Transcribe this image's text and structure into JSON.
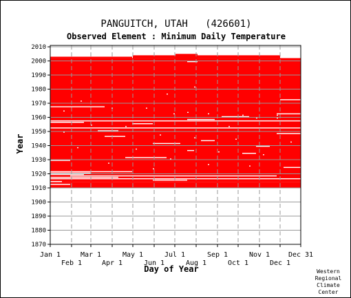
{
  "chart_data": {
    "type": "heatmap",
    "title": "PANGUITCH, UTAH   (426601)",
    "subtitle": "Observed Element : Minimum Daily Temperature",
    "xlabel": "Day of Year",
    "ylabel": "Year",
    "credit": [
      "Western",
      "Regional",
      "Climate",
      "Center"
    ],
    "xlim": [
      1,
      365
    ],
    "ylim": [
      1870,
      2011
    ],
    "x_ticks": [
      {
        "label": "Jan 1",
        "day": 1
      },
      {
        "label": "Feb 1",
        "day": 32
      },
      {
        "label": "Mar 1",
        "day": 60
      },
      {
        "label": "Apr 1",
        "day": 91
      },
      {
        "label": "May 1",
        "day": 121
      },
      {
        "label": "Jun 1",
        "day": 152
      },
      {
        "label": "Jul 1",
        "day": 182
      },
      {
        "label": "Aug 1",
        "day": 213
      },
      {
        "label": "Sep 1",
        "day": 244
      },
      {
        "label": "Oct 1",
        "day": 274
      },
      {
        "label": "Nov 1",
        "day": 305
      },
      {
        "label": "Dec 1",
        "day": 335
      },
      {
        "label": "Dec 31",
        "day": 365
      }
    ],
    "y_ticks": [
      1870,
      1880,
      1890,
      1900,
      1910,
      1920,
      1930,
      1940,
      1950,
      1960,
      1970,
      1980,
      1990,
      2000,
      2010
    ],
    "grid": true,
    "colors": {
      "observed": "#ff0000",
      "missing": "#ffffff",
      "grid": "#999999"
    },
    "coverage": [
      {
        "from_year": 1910,
        "to_year": 1914,
        "from_day": 1,
        "to_day": 365
      },
      {
        "from_year": 1914,
        "to_year": 2002,
        "from_day": 1,
        "to_day": 365
      },
      {
        "from_year": 2002,
        "to_year": 2003,
        "from_day": 1,
        "to_day": 120
      },
      {
        "from_year": 2002,
        "to_year": 2004,
        "from_day": 121,
        "to_day": 335
      },
      {
        "from_year": 2002,
        "to_year": 2005,
        "from_day": 183,
        "to_day": 215
      }
    ],
    "gaps": [
      {
        "year": 1912,
        "from_day": 1,
        "to_day": 30
      },
      {
        "year": 1914,
        "from_day": 1,
        "to_day": 18
      },
      {
        "year": 1915,
        "from_day": 150,
        "to_day": 200
      },
      {
        "year": 1916,
        "from_day": 1,
        "to_day": 365
      },
      {
        "year": 1917,
        "from_day": 1,
        "to_day": 100
      },
      {
        "year": 1918,
        "from_day": 30,
        "to_day": 330
      },
      {
        "year": 1919,
        "from_day": 1,
        "to_day": 50
      },
      {
        "year": 1920,
        "from_day": 1,
        "to_day": 60
      },
      {
        "year": 1921,
        "from_day": 1,
        "to_day": 120
      },
      {
        "year": 1924,
        "from_day": 340,
        "to_day": 365
      },
      {
        "year": 1929,
        "from_day": 1,
        "to_day": 30
      },
      {
        "year": 1931,
        "from_day": 110,
        "to_day": 170
      },
      {
        "year": 1934,
        "from_day": 280,
        "to_day": 300
      },
      {
        "year": 1936,
        "from_day": 200,
        "to_day": 210
      },
      {
        "year": 1939,
        "from_day": 300,
        "to_day": 320
      },
      {
        "year": 1941,
        "from_day": 150,
        "to_day": 190
      },
      {
        "year": 1943,
        "from_day": 220,
        "to_day": 240
      },
      {
        "year": 1946,
        "from_day": 80,
        "to_day": 110
      },
      {
        "year": 1948,
        "from_day": 330,
        "to_day": 365
      },
      {
        "year": 1950,
        "from_day": 70,
        "to_day": 100
      },
      {
        "year": 1952,
        "from_day": 1,
        "to_day": 365
      },
      {
        "year": 1955,
        "from_day": 120,
        "to_day": 150
      },
      {
        "year": 1956,
        "from_day": 1,
        "to_day": 50
      },
      {
        "year": 1957,
        "from_day": 1,
        "to_day": 365
      },
      {
        "year": 1958,
        "from_day": 200,
        "to_day": 240
      },
      {
        "year": 1960,
        "from_day": 250,
        "to_day": 290
      },
      {
        "year": 1962,
        "from_day": 330,
        "to_day": 365
      },
      {
        "year": 1967,
        "from_day": 1,
        "to_day": 80
      },
      {
        "year": 1972,
        "from_day": 335,
        "to_day": 365
      },
      {
        "year": 1999,
        "from_day": 200,
        "to_day": 215
      }
    ],
    "missing_points": [
      {
        "year": 1971,
        "day": 45
      },
      {
        "year": 1966,
        "day": 90
      },
      {
        "year": 1966,
        "day": 140
      },
      {
        "year": 1962,
        "day": 180
      },
      {
        "year": 1962,
        "day": 230
      },
      {
        "year": 1961,
        "day": 280
      },
      {
        "year": 1959,
        "day": 300
      },
      {
        "year": 1959,
        "day": 330
      },
      {
        "year": 1954,
        "day": 60
      },
      {
        "year": 1953,
        "day": 110
      },
      {
        "year": 1953,
        "day": 260
      },
      {
        "year": 1949,
        "day": 20
      },
      {
        "year": 1947,
        "day": 160
      },
      {
        "year": 1945,
        "day": 210
      },
      {
        "year": 1944,
        "day": 270
      },
      {
        "year": 1942,
        "day": 350
      },
      {
        "year": 1938,
        "day": 40
      },
      {
        "year": 1937,
        "day": 125
      },
      {
        "year": 1935,
        "day": 245
      },
      {
        "year": 1933,
        "day": 310
      },
      {
        "year": 1930,
        "day": 175
      },
      {
        "year": 1927,
        "day": 85
      },
      {
        "year": 1926,
        "day": 230
      },
      {
        "year": 1925,
        "day": 290
      },
      {
        "year": 1923,
        "day": 150
      },
      {
        "year": 1981,
        "day": 210
      },
      {
        "year": 1976,
        "day": 170
      },
      {
        "year": 1964,
        "day": 20
      },
      {
        "year": 1963,
        "day": 200
      },
      {
        "year": 1961,
        "day": 330
      }
    ]
  }
}
